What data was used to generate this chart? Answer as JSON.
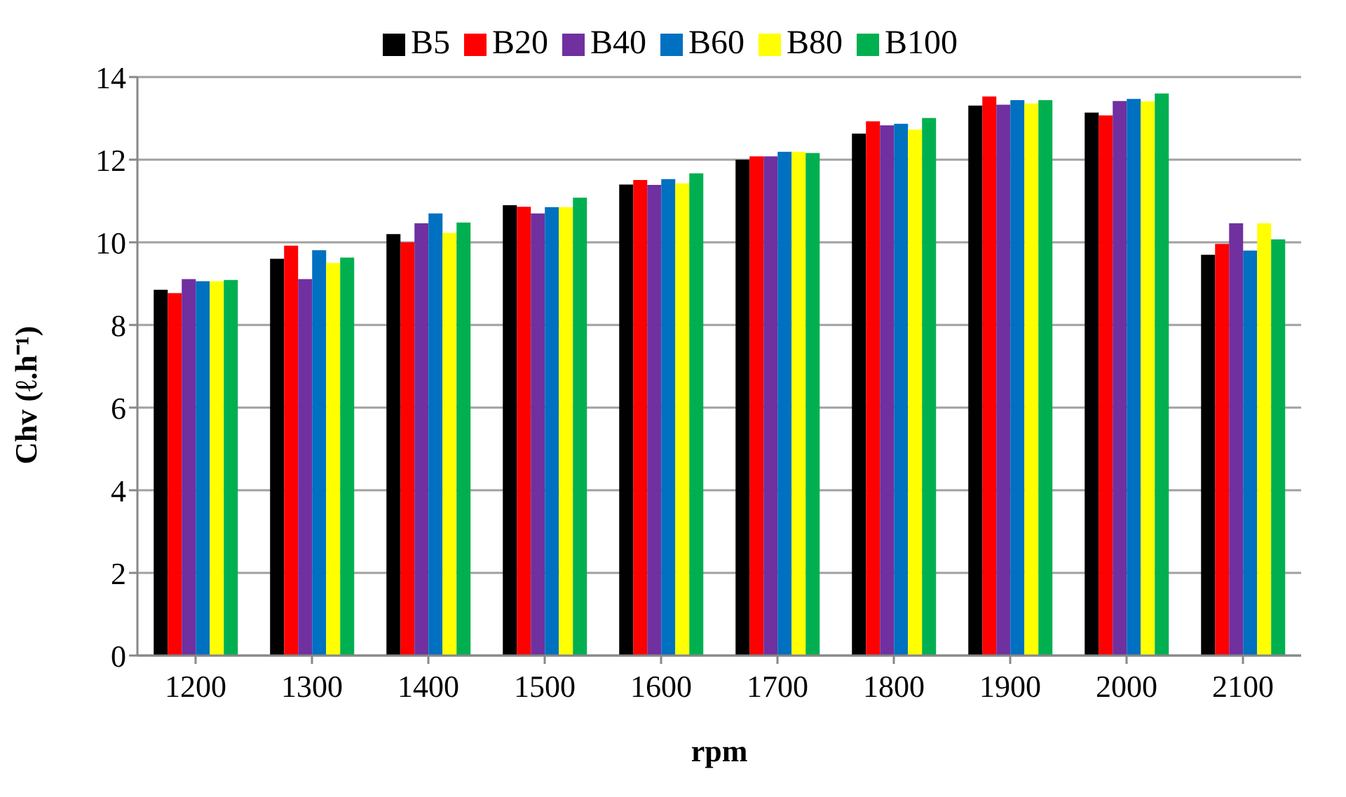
{
  "chart_data": {
    "type": "bar",
    "xlabel": "rpm",
    "ylabel": "Chv (ℓ.h⁻¹)",
    "categories": [
      "1200",
      "1300",
      "1400",
      "1500",
      "1600",
      "1700",
      "1800",
      "1900",
      "2000",
      "2100"
    ],
    "series": [
      {
        "name": "B5",
        "color": "#000000",
        "values": [
          8.85,
          9.6,
          10.2,
          10.9,
          11.4,
          12.0,
          12.63,
          13.31,
          13.14,
          9.7
        ]
      },
      {
        "name": "B20",
        "color": "#ff0000",
        "values": [
          8.77,
          9.92,
          10.0,
          10.86,
          11.51,
          12.08,
          12.93,
          13.53,
          13.07,
          9.96
        ]
      },
      {
        "name": "B40",
        "color": "#7030a0",
        "values": [
          9.11,
          9.11,
          10.46,
          10.7,
          11.39,
          12.08,
          12.83,
          13.33,
          13.42,
          10.46
        ]
      },
      {
        "name": "B60",
        "color": "#0070c0",
        "values": [
          9.06,
          9.81,
          10.7,
          10.85,
          11.53,
          12.19,
          12.87,
          13.44,
          13.47,
          9.8
        ]
      },
      {
        "name": "B80",
        "color": "#ffff00",
        "values": [
          9.06,
          9.5,
          10.23,
          10.85,
          11.43,
          12.19,
          12.73,
          13.36,
          13.41,
          10.46
        ]
      },
      {
        "name": "B100",
        "color": "#00b050",
        "values": [
          9.09,
          9.63,
          10.48,
          11.08,
          11.67,
          12.16,
          13.01,
          13.44,
          13.6,
          10.07
        ]
      }
    ],
    "ylim": [
      0,
      14
    ],
    "yticks": [
      0,
      2,
      4,
      6,
      8,
      10,
      12,
      14
    ],
    "grid": "y",
    "legend": "top"
  }
}
